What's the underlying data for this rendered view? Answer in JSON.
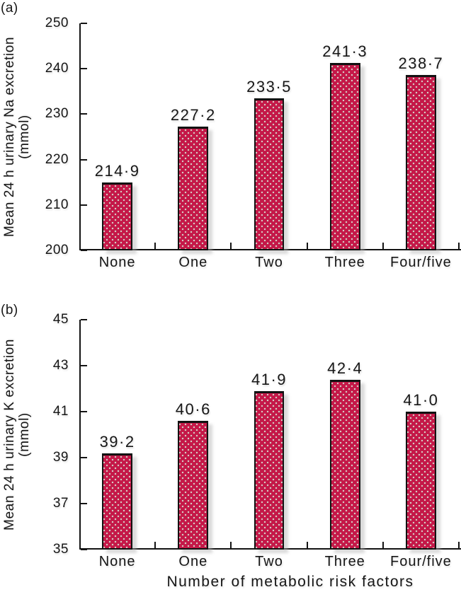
{
  "figure": {
    "xlabel": "Number of metabolic risk factors"
  },
  "chart_data": [
    {
      "type": "bar",
      "panel": "a",
      "panel_label": "(a)",
      "ylabel": "Mean 24 h urinary Na excretion (mmol)",
      "ylabel_line1": "Mean 24 h urinary Na excretion",
      "ylabel_line2": "(mmol)",
      "xlabel": "Number of metabolic risk factors",
      "categories": [
        "None",
        "One",
        "Two",
        "Three",
        "Four/five"
      ],
      "values": [
        214.9,
        227.2,
        233.5,
        241.3,
        238.7
      ],
      "value_labels": [
        "214·9",
        "227·2",
        "233·5",
        "241·3",
        "238·7"
      ],
      "ylim": [
        200,
        250
      ],
      "yticks": [
        200,
        210,
        220,
        230,
        240,
        250
      ],
      "grid": false,
      "legend": null,
      "bar_color": "#c41848",
      "bar_dot_color": "#d6dbce",
      "bar_border_color": "#121212"
    },
    {
      "type": "bar",
      "panel": "b",
      "panel_label": "(b)",
      "ylabel": "Mean 24 h urinary K excretion (mmol)",
      "ylabel_line1": "Mean 24 h urinary K excretion",
      "ylabel_line2": "(mmol)",
      "xlabel": "Number of metabolic risk factors",
      "categories": [
        "None",
        "One",
        "Two",
        "Three",
        "Four/five"
      ],
      "values": [
        39.2,
        40.6,
        41.9,
        42.4,
        41.0
      ],
      "value_labels": [
        "39·2",
        "40·6",
        "41·9",
        "42·4",
        "41·0"
      ],
      "ylim": [
        35,
        45
      ],
      "yticks": [
        35,
        37,
        39,
        41,
        43,
        45
      ],
      "grid": false,
      "legend": null,
      "bar_color": "#c41848",
      "bar_dot_color": "#d6dbce",
      "bar_border_color": "#121212"
    }
  ]
}
